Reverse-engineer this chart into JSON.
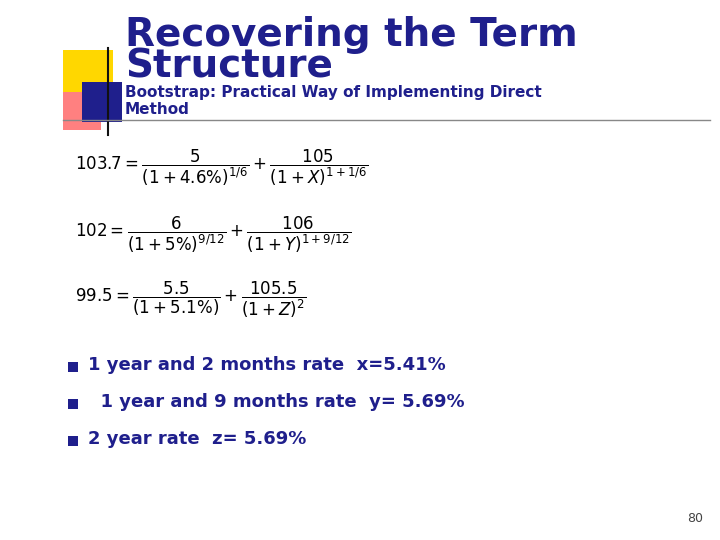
{
  "title_line1": "Recovering the Term",
  "title_line2": "Structure",
  "subtitle_line1": "Bootstrap: Practical Way of Implementing Direct",
  "subtitle_line2": "Method",
  "title_color": "#1F1F8C",
  "subtitle_color": "#1F1F8C",
  "bg_color": "#FFFFFF",
  "bullets": [
    "1 year and 2 months rate  x=5.41%",
    "  1 year and 9 months rate  y= 5.69%",
    "2 year rate  z= 5.69%"
  ],
  "bullet_color": "#1F1F8C",
  "eq_color": "#000000",
  "page_number": "80",
  "yellow_color": "#FFD700",
  "pink_color": "#FF8080",
  "blue_color": "#1F1F8C",
  "line_color": "#888888"
}
